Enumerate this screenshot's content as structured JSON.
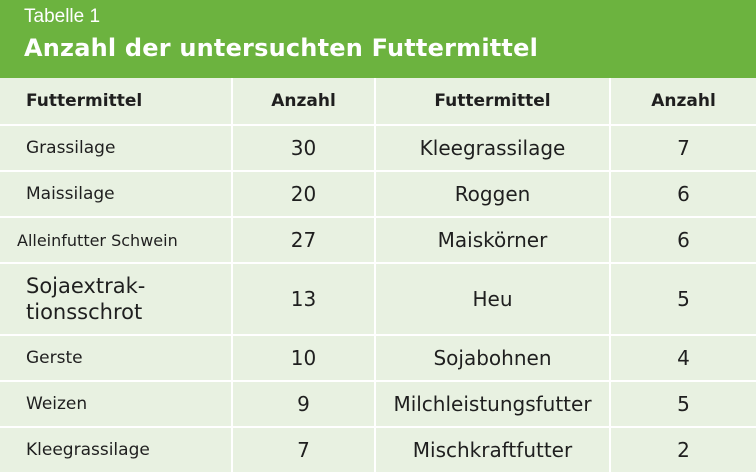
{
  "header": {
    "subtitle": "Tabelle 1",
    "title": "Anzahl der untersuchten Futtermittel"
  },
  "table": {
    "columns": [
      "Futtermittel",
      "Anzahl",
      "Futtermittel",
      "Anzahl"
    ],
    "rows": [
      [
        "Grassilage",
        "30",
        "Kleegrassilage",
        "7"
      ],
      [
        "Maissilage",
        "20",
        "Roggen",
        "6"
      ],
      [
        "Alleinfutter Schwein",
        "27",
        "Maiskörner",
        "6"
      ],
      [
        "Sojaextrak-\ntionsschrot",
        "13",
        "Heu",
        "5"
      ],
      [
        "Gerste",
        "10",
        "Sojabohnen",
        "4"
      ],
      [
        "Weizen",
        "9",
        "Milchleistungsfutter",
        "5"
      ],
      [
        "Kleegrassilage",
        "7",
        "Mischkraftfutter",
        "2"
      ]
    ]
  },
  "colors": {
    "header_green": "#6cb33f",
    "table_background": "#e8f1e1",
    "text": "#1f1f1f"
  }
}
